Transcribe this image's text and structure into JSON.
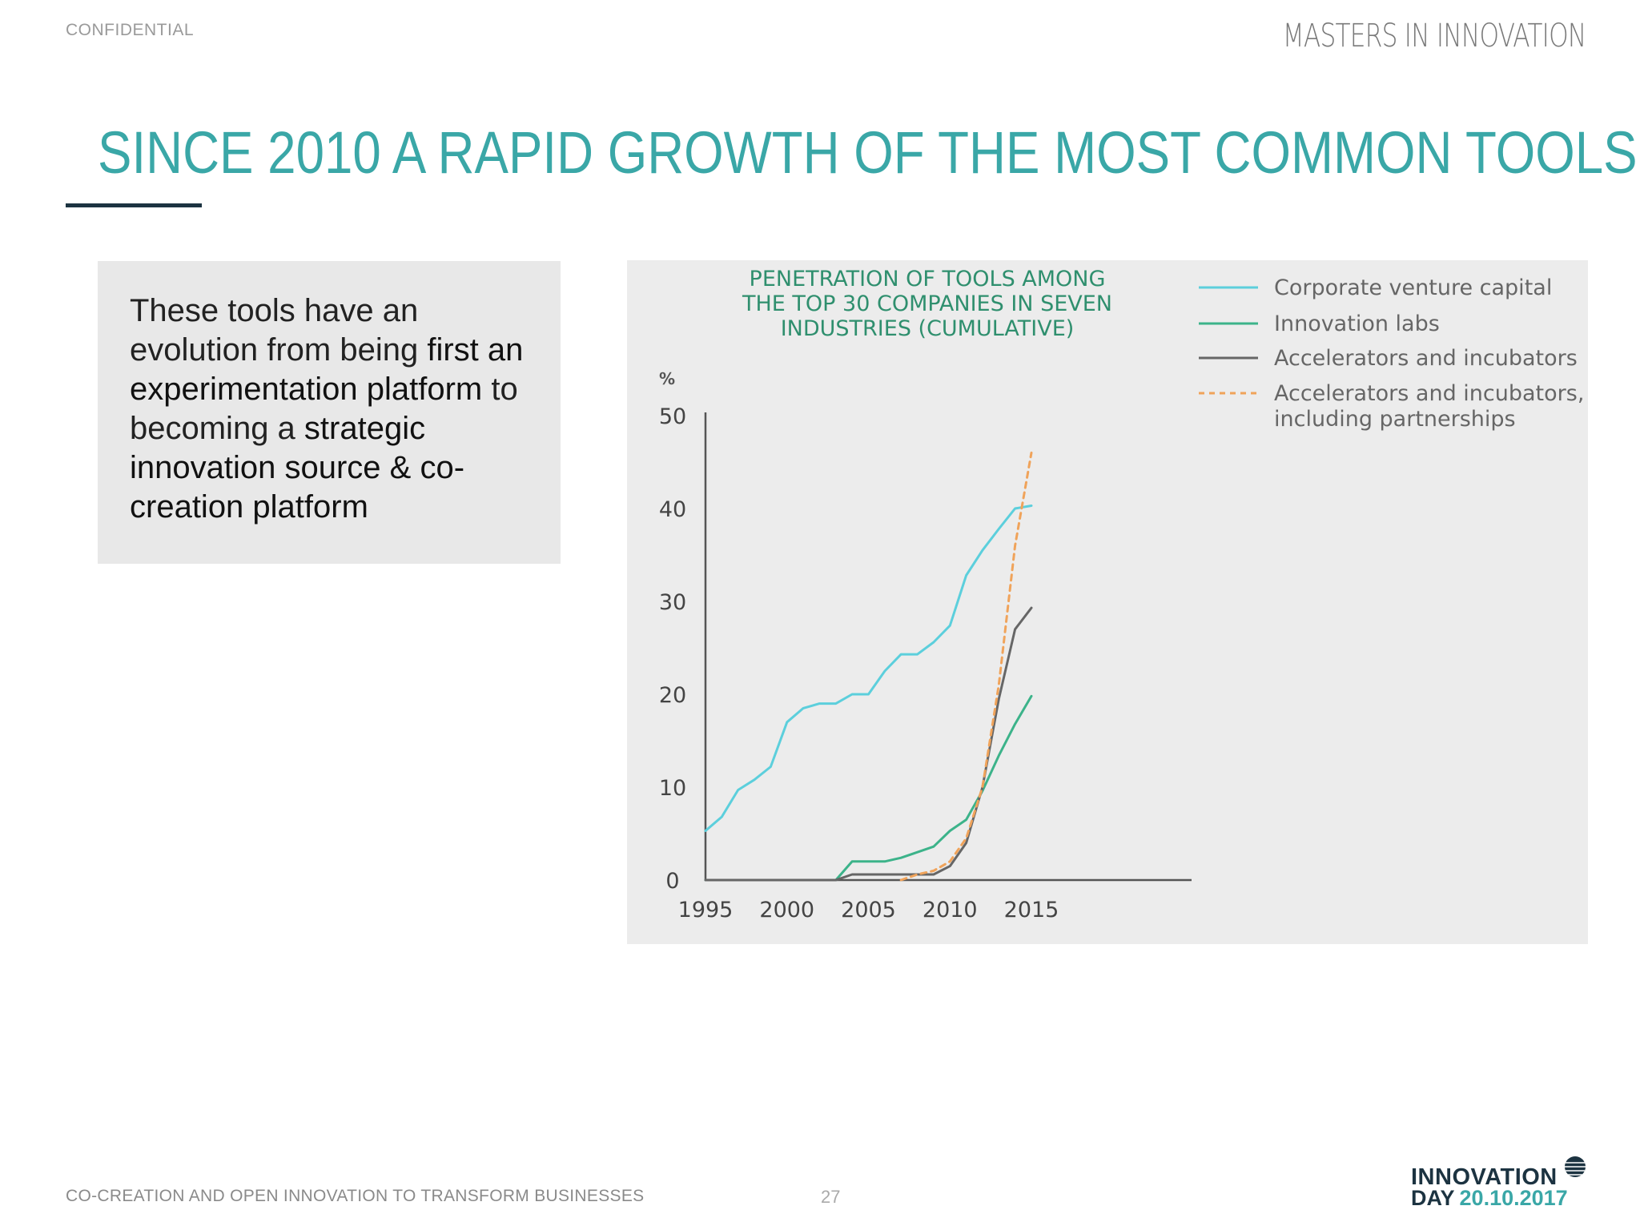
{
  "header": {
    "confidential": "CONFIDENTIAL",
    "brand": "MASTERS IN INNOVATION"
  },
  "slide": {
    "title": "SINCE 2010 A RAPID GROWTH OF THE MOST COMMON TOOLS",
    "body": {
      "p1": "These tools have an evolution from being ",
      "b1": "first an experimentation platform",
      "p2": " to becoming a ",
      "b2": "strategic innovation source & co-creation platform"
    }
  },
  "footer": {
    "left": "CO-CREATION AND OPEN INNOVATION TO TRANSFORM BUSINESSES",
    "page": "27",
    "logo_line1": "INNOVATION",
    "logo_line2": "DAY",
    "logo_date": "20.10.2017"
  },
  "chart_data": {
    "type": "line",
    "title_lines": [
      "PENETRATION OF TOOLS AMONG",
      "THE TOP 30 COMPANIES IN SEVEN",
      "INDUSTRIES (CUMULATIVE)"
    ],
    "ylabel": "%",
    "xlim": [
      1995,
      2015
    ],
    "ylim": [
      0,
      50
    ],
    "xticks": [
      1995,
      2000,
      2005,
      2010,
      2015
    ],
    "yticks": [
      0,
      10,
      20,
      30,
      40,
      50
    ],
    "grid": false,
    "legend_position": "top-right",
    "series": [
      {
        "name": "Corporate venture capital",
        "color": "#5ccfdc",
        "style": "solid",
        "points": [
          [
            1995,
            5.3
          ],
          [
            1996,
            6.8
          ],
          [
            1997,
            9.7
          ],
          [
            1998,
            10.8
          ],
          [
            1999,
            12.2
          ],
          [
            2000,
            17
          ],
          [
            2001,
            18.5
          ],
          [
            2002,
            19
          ],
          [
            2003,
            19
          ],
          [
            2004,
            20
          ],
          [
            2005,
            20
          ],
          [
            2006,
            22.5
          ],
          [
            2007,
            24.3
          ],
          [
            2008,
            24.3
          ],
          [
            2009,
            25.6
          ],
          [
            2010,
            27.4
          ],
          [
            2011,
            32.8
          ],
          [
            2012,
            35.5
          ],
          [
            2013,
            37.8
          ],
          [
            2014,
            40
          ],
          [
            2015,
            40.3
          ]
        ]
      },
      {
        "name": "Innovation labs",
        "color": "#3cb38a",
        "style": "solid",
        "points": [
          [
            1995,
            0
          ],
          [
            2003,
            0
          ],
          [
            2004,
            2
          ],
          [
            2005,
            2
          ],
          [
            2006,
            2
          ],
          [
            2007,
            2.4
          ],
          [
            2008,
            3
          ],
          [
            2009,
            3.6
          ],
          [
            2010,
            5.3
          ],
          [
            2011,
            6.5
          ],
          [
            2012,
            9.6
          ],
          [
            2013,
            13.4
          ],
          [
            2014,
            16.8
          ],
          [
            2015,
            19.8
          ]
        ]
      },
      {
        "name": "Accelerators and incubators",
        "color": "#666666",
        "style": "solid",
        "points": [
          [
            1995,
            0
          ],
          [
            2003,
            0
          ],
          [
            2004,
            0.6
          ],
          [
            2005,
            0.6
          ],
          [
            2006,
            0.6
          ],
          [
            2007,
            0.6
          ],
          [
            2008,
            0.6
          ],
          [
            2009,
            0.6
          ],
          [
            2010,
            1.5
          ],
          [
            2011,
            4
          ],
          [
            2012,
            10
          ],
          [
            2013,
            19.5
          ],
          [
            2014,
            27
          ],
          [
            2015,
            29.3
          ]
        ]
      },
      {
        "name": "Accelerators and incubators, including partnerships",
        "color": "#f0a35a",
        "style": "dashed",
        "points": [
          [
            2007,
            0
          ],
          [
            2008,
            0.6
          ],
          [
            2009,
            1
          ],
          [
            2010,
            2
          ],
          [
            2011,
            4.5
          ],
          [
            2012,
            10
          ],
          [
            2013,
            21
          ],
          [
            2014,
            36
          ],
          [
            2015,
            46
          ]
        ]
      }
    ]
  }
}
